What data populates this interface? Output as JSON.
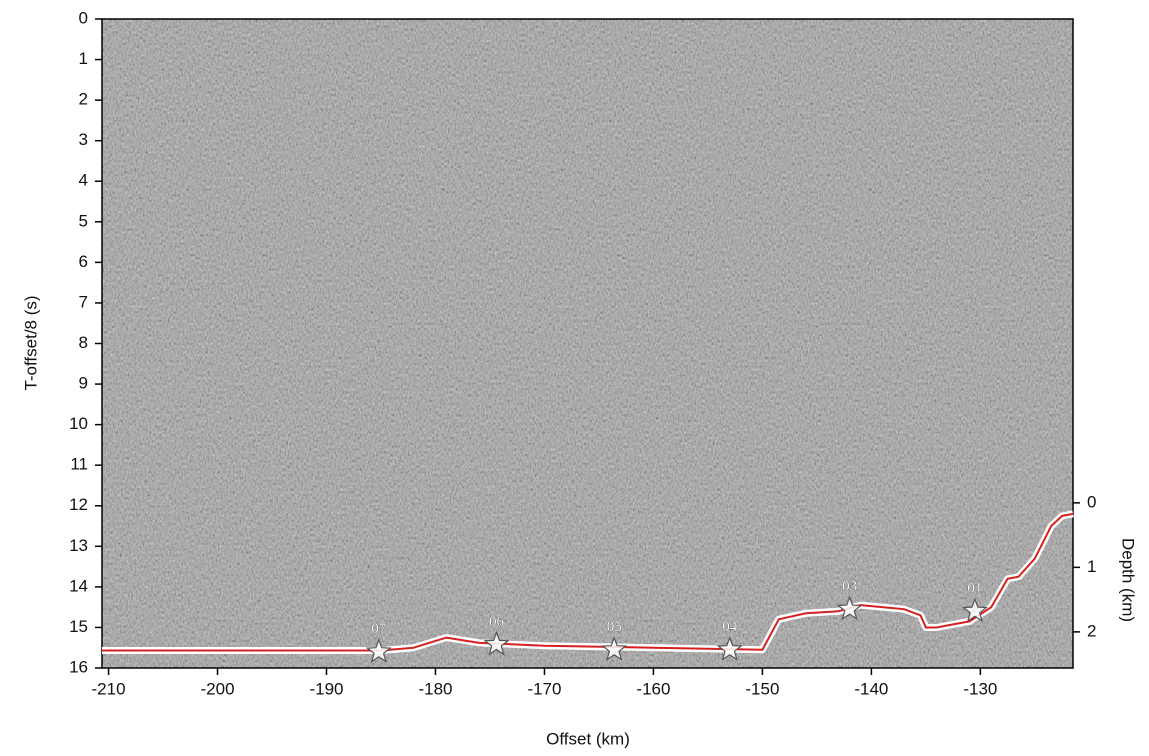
{
  "chart_data": {
    "type": "line",
    "xlabel": "Offset (km)",
    "ylabel": "T-offset/8 (s)",
    "y2label": "Depth (km)",
    "xlim": [
      -210.6,
      -121.5
    ],
    "xticks": [
      -210,
      -200,
      -190,
      -180,
      -170,
      -160,
      -150,
      -140,
      -130
    ],
    "ylim": [
      16,
      0
    ],
    "yticks": [
      0,
      1,
      2,
      3,
      4,
      5,
      6,
      7,
      8,
      9,
      10,
      11,
      12,
      13,
      14,
      15,
      16
    ],
    "y2lim": [
      2.56,
      -7.5
    ],
    "y2ticks": [
      0,
      1,
      2
    ],
    "seafloor": {
      "color": "#d62020",
      "x": [
        -210.6,
        -185,
        -182,
        -179,
        -176,
        -170,
        -160,
        -150,
        -149.5,
        -148.5,
        -146,
        -143,
        -141,
        -137,
        -135.5,
        -135,
        -134,
        -133,
        -131,
        -129,
        -127.5,
        -126.5,
        -125,
        -123.5,
        -122.5,
        -121.5
      ],
      "values": [
        15.57,
        15.57,
        15.5,
        15.25,
        15.38,
        15.45,
        15.5,
        15.55,
        15.3,
        14.8,
        14.65,
        14.6,
        14.45,
        14.55,
        14.7,
        15.0,
        15.0,
        14.95,
        14.85,
        14.5,
        13.8,
        13.75,
        13.3,
        12.5,
        12.25,
        12.2
      ]
    },
    "stations": {
      "labels": [
        "07",
        "06",
        "05",
        "04",
        "03",
        "01"
      ],
      "x": [
        -185.2,
        -174.4,
        -163.6,
        -153,
        -142,
        -130.5
      ],
      "values": [
        15.6,
        15.42,
        15.55,
        15.55,
        14.55,
        14.6
      ]
    }
  }
}
